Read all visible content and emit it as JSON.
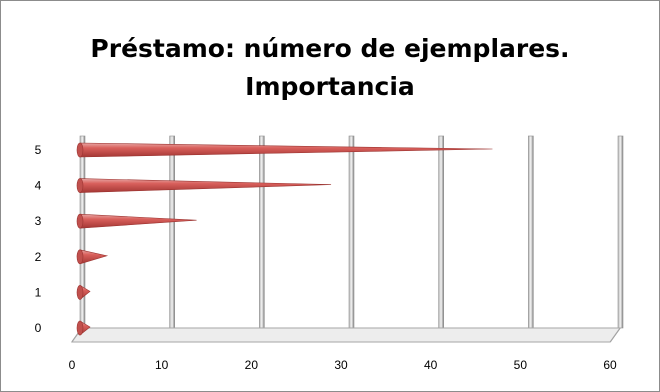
{
  "chart_data": {
    "type": "bar",
    "orientation": "horizontal",
    "style": "3d-cone",
    "title_lines": [
      "Préstamo: número de ejemplares.",
      "Importancia"
    ],
    "categories": [
      "0",
      "1",
      "2",
      "3",
      "4",
      "5"
    ],
    "values": [
      1,
      1,
      3,
      13,
      28,
      46
    ],
    "xlim": [
      0,
      60
    ],
    "x_ticks": [
      "0",
      "10",
      "20",
      "30",
      "40",
      "50",
      "60"
    ],
    "y_ticks": [
      "0",
      "1",
      "2",
      "3",
      "4",
      "5"
    ],
    "grid": "vertical",
    "legend": "none",
    "bar_color": "#c0504d"
  }
}
